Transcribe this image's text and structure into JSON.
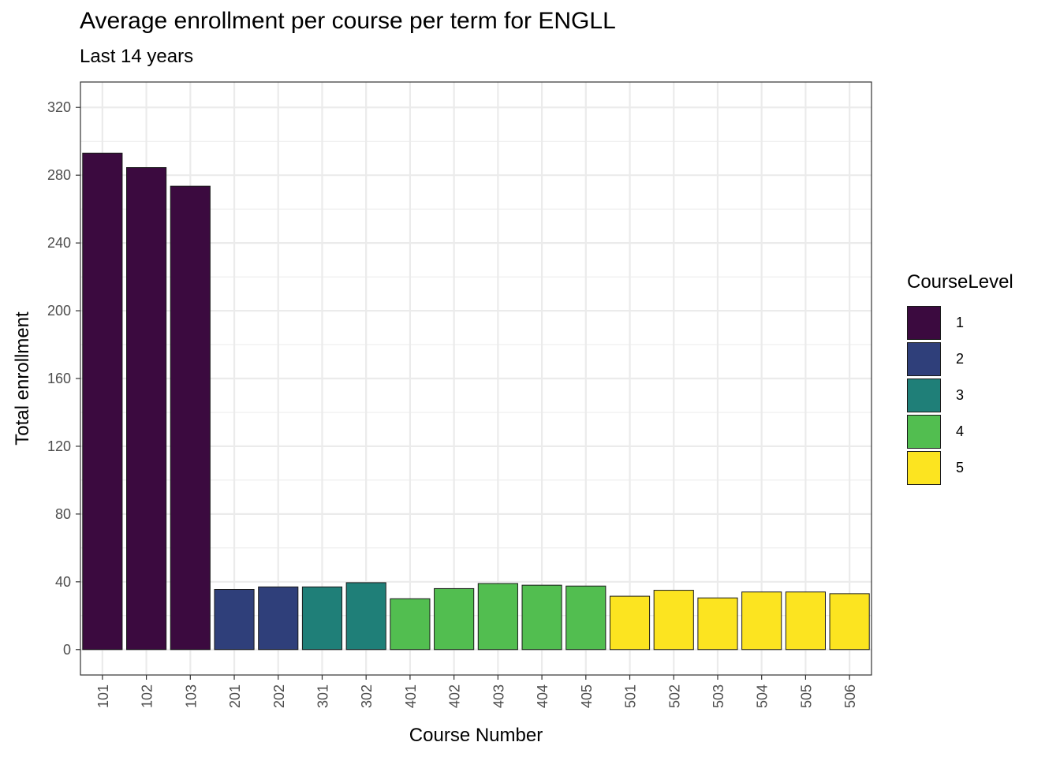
{
  "chart_data": {
    "type": "bar",
    "title": "Average enrollment per course per term for ENGLL",
    "subtitle": "Last 14 years",
    "xlabel": "Course Number",
    "ylabel": "Total enrollment",
    "categories": [
      "101",
      "102",
      "103",
      "201",
      "202",
      "301",
      "302",
      "401",
      "402",
      "403",
      "404",
      "405",
      "501",
      "502",
      "503",
      "504",
      "505",
      "506"
    ],
    "values": [
      293,
      284.5,
      273.5,
      35.5,
      37,
      37,
      39.5,
      30,
      36,
      39,
      38,
      37.5,
      31.5,
      35,
      30.5,
      34,
      34,
      33
    ],
    "levels": [
      "1",
      "1",
      "1",
      "2",
      "2",
      "3",
      "3",
      "4",
      "4",
      "4",
      "4",
      "4",
      "5",
      "5",
      "5",
      "5",
      "5",
      "5"
    ],
    "ylim": [
      -15,
      335
    ],
    "yticks": [
      0,
      40,
      80,
      120,
      160,
      200,
      240,
      280,
      320
    ],
    "grid": true,
    "legend": {
      "title": "CourseLevel",
      "placement": "right",
      "entries": [
        {
          "label": "1",
          "color": "#440154"
        },
        {
          "label": "2",
          "color": "#3b528b"
        },
        {
          "label": "3",
          "color": "#21908c"
        },
        {
          "label": "4",
          "color": "#5dc863"
        },
        {
          "label": "5",
          "color": "#fde725"
        }
      ]
    }
  },
  "colors": {
    "level_1": "#3b0a3f",
    "level_2": "#2f3f7a",
    "level_3": "#1f7f78",
    "level_4": "#52be50",
    "level_5": "#fce420",
    "grid": "#ebebeb",
    "panel_border": "#333333"
  }
}
